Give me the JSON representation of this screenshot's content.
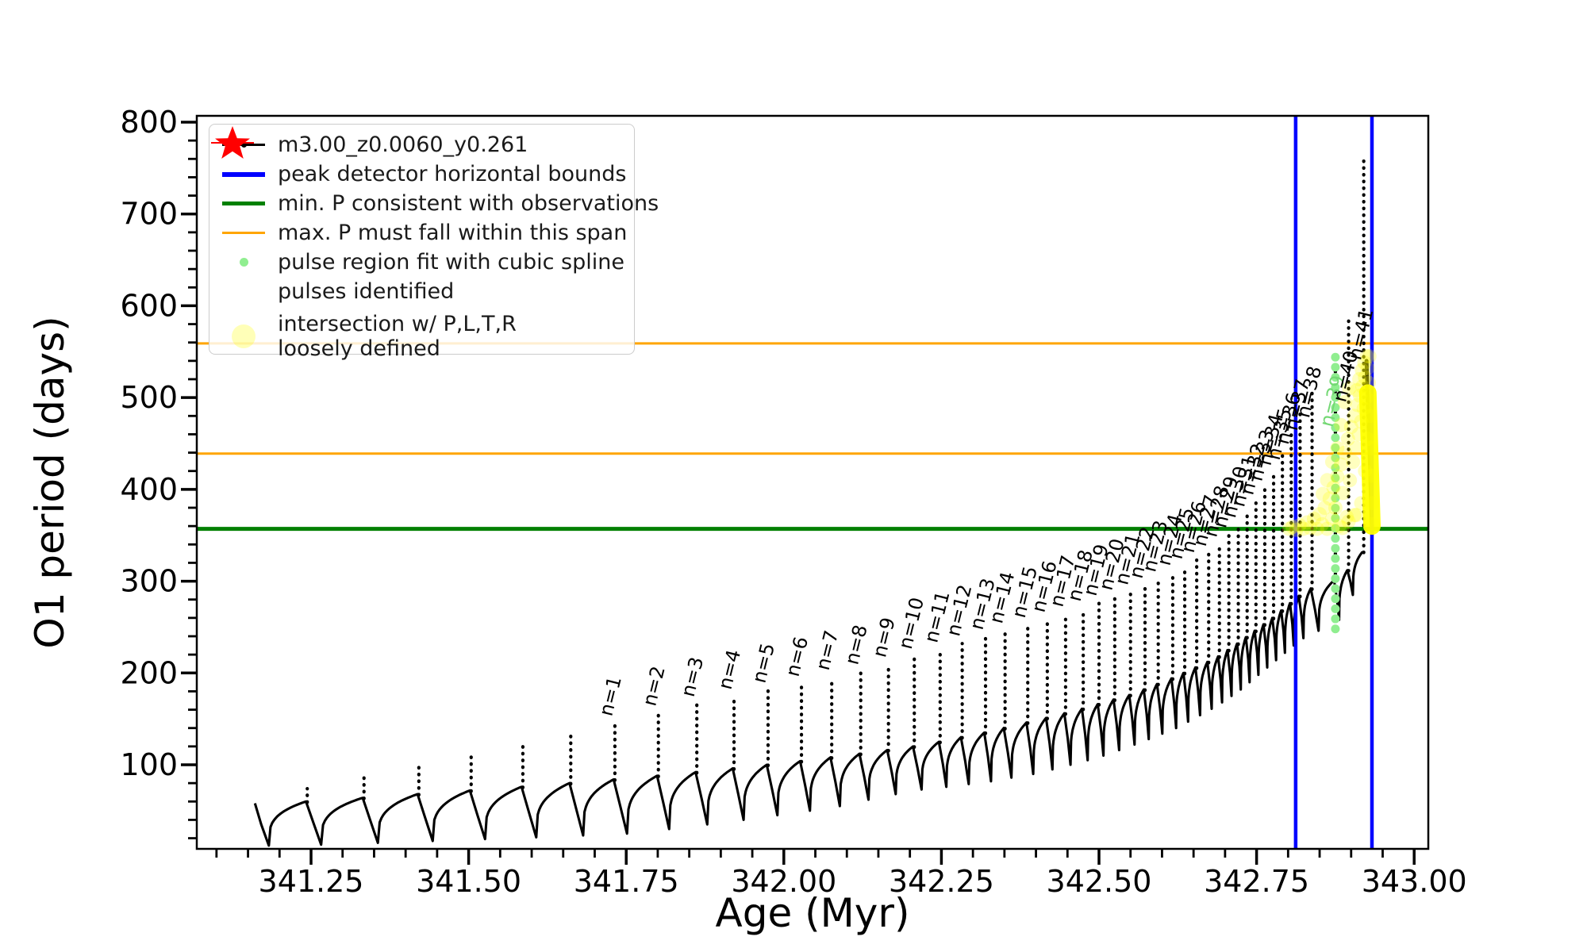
{
  "figure": {
    "background": "#ffffff"
  },
  "axes": {
    "xlabel": "Age (Myr)",
    "ylabel": "O1 period (days)",
    "x_tick_labels": [
      "341.25",
      "341.50",
      "341.75",
      "342.00",
      "342.25",
      "342.50",
      "342.75",
      "343.00"
    ],
    "x_tick_values": [
      341.25,
      341.5,
      341.75,
      342.0,
      342.25,
      342.5,
      342.75,
      343.0
    ],
    "x_minor_step": 0.05,
    "y_tick_labels": [
      "100",
      "200",
      "300",
      "400",
      "500",
      "600",
      "700",
      "800"
    ],
    "y_tick_values": [
      100,
      200,
      300,
      400,
      500,
      600,
      700,
      800
    ],
    "y_minor_step": 20,
    "xlim": [
      341.069,
      343.022
    ],
    "ylim": [
      8,
      807
    ]
  },
  "colors": {
    "track": "#000000",
    "blue_bounds": "#0000ff",
    "green_min": "#008000",
    "orange_span": "#ffa500",
    "spline_dot": "#90ee90",
    "pulse_star": "#ff0000",
    "intersection": "#ffff00",
    "green_label": "#74d874"
  },
  "legend": {
    "items": [
      {
        "label": "m3.00_z0.0060_y0.261",
        "color": "#000000",
        "type": "line-with-dot"
      },
      {
        "label": "peak detector horizontal bounds",
        "color": "#0000ff",
        "type": "thick-line"
      },
      {
        "label": "min. P consistent with observations",
        "color": "#008000",
        "type": "thick-line"
      },
      {
        "label": "max. P must fall within this span",
        "color": "#ffa500",
        "type": "line"
      },
      {
        "label": "pulse region fit with cubic spline",
        "color": "#90ee90",
        "type": "small-dot"
      },
      {
        "label": "pulses identified",
        "color": "#ff0000",
        "type": "star"
      },
      {
        "label": "intersection w/ P,L,T,R",
        "label2": "loosely defined",
        "color": "#ffff00",
        "type": "faint-dot"
      }
    ]
  },
  "chart_data": {
    "type": "line",
    "title": "",
    "xlabel": "Age (Myr)",
    "ylabel": "O1 period (days)",
    "xlim": [
      341.069,
      343.022
    ],
    "ylim": [
      8,
      807
    ],
    "grid": false,
    "legend_position": "upper left",
    "series_name": "m3.00_z0.0060_y0.261",
    "series_style": "black thermal-pulse sawtooth track with point markers; pulses numbered n=1..41",
    "pulse_fields": [
      "n",
      "age_myr",
      "peak_days",
      "base_days",
      "trough_days"
    ],
    "pulses": [
      [
        0,
        341.161,
        58,
        58,
        12
      ],
      [
        0,
        341.244,
        74,
        60,
        13
      ],
      [
        0,
        341.334,
        90,
        64,
        15
      ],
      [
        0,
        341.421,
        103,
        68,
        17
      ],
      [
        0,
        341.504,
        114,
        72,
        19
      ],
      [
        0,
        341.586,
        125,
        76,
        21
      ],
      [
        0,
        341.662,
        134,
        80,
        23
      ],
      [
        1,
        341.732,
        145,
        84,
        25
      ],
      [
        2,
        341.801,
        156,
        88,
        30
      ],
      [
        3,
        341.862,
        166,
        92,
        35
      ],
      [
        4,
        341.921,
        174,
        96,
        40
      ],
      [
        5,
        341.975,
        181,
        100,
        45
      ],
      [
        6,
        342.028,
        188,
        104,
        50
      ],
      [
        7,
        342.076,
        195,
        108,
        55
      ],
      [
        8,
        342.122,
        201,
        112,
        62
      ],
      [
        9,
        342.166,
        209,
        116,
        68
      ],
      [
        10,
        342.207,
        218,
        120,
        73
      ],
      [
        11,
        342.248,
        225,
        125,
        76
      ],
      [
        12,
        342.283,
        232,
        130,
        79
      ],
      [
        13,
        342.32,
        239,
        135,
        82
      ],
      [
        14,
        342.351,
        246,
        140,
        86
      ],
      [
        15,
        342.387,
        252,
        146,
        90
      ],
      [
        16,
        342.418,
        258,
        151,
        95
      ],
      [
        17,
        342.447,
        264,
        156,
        100
      ],
      [
        18,
        342.475,
        270,
        161,
        105
      ],
      [
        19,
        342.5,
        276,
        166,
        110
      ],
      [
        20,
        342.525,
        282,
        171,
        116
      ],
      [
        21,
        342.55,
        288,
        176,
        122
      ],
      [
        22,
        342.573,
        295,
        182,
        128
      ],
      [
        23,
        342.594,
        302,
        188,
        134
      ],
      [
        24,
        342.617,
        309,
        194,
        140
      ],
      [
        25,
        342.636,
        316,
        200,
        147
      ],
      [
        26,
        342.655,
        323,
        206,
        154
      ],
      [
        27,
        342.674,
        330,
        212,
        161
      ],
      [
        28,
        342.691,
        340,
        218,
        168
      ],
      [
        29,
        342.706,
        350,
        225,
        175
      ],
      [
        30,
        342.721,
        361,
        232,
        182
      ],
      [
        31,
        342.735,
        373,
        239,
        190
      ],
      [
        32,
        342.749,
        386,
        246,
        198
      ],
      [
        33,
        342.763,
        401,
        253,
        206
      ],
      [
        34,
        342.777,
        418,
        260,
        214
      ],
      [
        35,
        342.791,
        438,
        268,
        222
      ],
      [
        36,
        342.805,
        460,
        276,
        230
      ],
      [
        37,
        342.819,
        484,
        284,
        238
      ],
      [
        38,
        342.838,
        507,
        292,
        246
      ],
      [
        39,
        342.875,
        540,
        301,
        258
      ],
      [
        40,
        342.896,
        590,
        312,
        285
      ],
      [
        41,
        342.92,
        758,
        332,
        null
      ]
    ],
    "final_descent": [
      [
        342.9245,
        540
      ],
      [
        342.9255,
        512
      ],
      [
        342.9295,
        435
      ],
      [
        342.933,
        354
      ]
    ],
    "pulse_label_format": "n={n}",
    "pulse_label_v_overrides": {
      "35": 424,
      "36": 441,
      "37": 456,
      "38": 470,
      "39": 460,
      "40": 487,
      "41": 533
    },
    "green_labeled_pulse": 39,
    "annotations": {
      "peak_detector_bounds_ages": [
        342.812,
        342.933
      ],
      "min_P_days": 357,
      "max_P_span_days": [
        439,
        559
      ],
      "spline_fit": {
        "age": 342.875,
        "v_min": 248,
        "v_max": 544,
        "count": 28
      },
      "pulses_identified": [],
      "intersection_streak": {
        "from": [
          342.9265,
          505
        ],
        "to": [
          342.933,
          360
        ]
      },
      "intersection_points": [
        [
          342.802,
          357
        ],
        [
          342.807,
          359
        ],
        [
          342.813,
          356
        ],
        [
          342.818,
          361
        ],
        [
          342.824,
          357
        ],
        [
          342.83,
          364
        ],
        [
          342.835,
          358
        ],
        [
          342.841,
          368
        ],
        [
          342.846,
          357
        ],
        [
          342.85,
          373
        ],
        [
          342.854,
          362
        ],
        [
          342.855,
          395
        ],
        [
          342.858,
          380
        ],
        [
          342.862,
          357
        ],
        [
          342.862,
          410
        ],
        [
          342.866,
          390
        ],
        [
          342.87,
          368
        ],
        [
          342.87,
          430
        ],
        [
          342.872,
          402
        ],
        [
          342.875,
          380
        ],
        [
          342.878,
          414
        ],
        [
          342.878,
          445
        ],
        [
          342.881,
          360
        ],
        [
          342.884,
          427
        ],
        [
          342.884,
          470
        ],
        [
          342.886,
          358
        ],
        [
          342.887,
          396
        ],
        [
          342.89,
          440
        ],
        [
          342.89,
          495
        ],
        [
          342.893,
          370
        ],
        [
          342.895,
          455
        ],
        [
          342.896,
          365
        ],
        [
          342.897,
          510
        ],
        [
          342.898,
          410
        ],
        [
          342.9,
          468
        ],
        [
          342.903,
          430
        ],
        [
          342.905,
          480
        ],
        [
          342.905,
          372
        ],
        [
          342.908,
          445
        ],
        [
          342.908,
          372
        ],
        [
          342.909,
          508
        ],
        [
          342.91,
          492
        ],
        [
          342.912,
          460
        ],
        [
          342.913,
          520
        ],
        [
          342.914,
          502
        ],
        [
          342.916,
          474
        ],
        [
          342.916,
          385
        ],
        [
          342.917,
          530
        ],
        [
          342.918,
          512
        ],
        [
          342.92,
          488
        ],
        [
          342.921,
          538
        ],
        [
          342.922,
          522
        ],
        [
          342.922,
          420
        ],
        [
          342.924,
          500
        ],
        [
          342.925,
          545
        ],
        [
          342.926,
          532
        ],
        [
          342.926,
          455
        ],
        [
          342.928,
          516
        ],
        [
          342.929,
          545
        ],
        [
          342.93,
          480
        ],
        [
          342.931,
          445
        ],
        [
          342.932,
          415
        ],
        [
          342.933,
          385
        ],
        [
          342.934,
          362
        ]
      ]
    }
  }
}
